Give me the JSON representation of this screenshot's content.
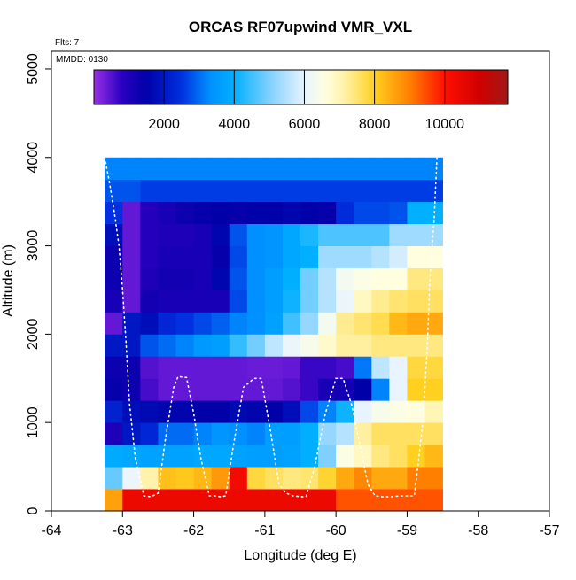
{
  "chart_data": {
    "type": "heatmap",
    "title": "ORCAS RF07upwind VMR_VXL",
    "xlabel": "Longitude (deg E)",
    "ylabel": "Altitude (m)",
    "xlim": [
      -64,
      -57
    ],
    "ylim": [
      0,
      5200
    ],
    "x_ticks": [
      -64,
      -63,
      -62,
      -61,
      -60,
      -59,
      -58,
      -57
    ],
    "y_ticks": [
      0,
      1000,
      2000,
      3000,
      4000,
      5000
    ],
    "annotations": {
      "flights": "Flts: 7",
      "mmdd": "MMDD: 0130"
    },
    "colorbar": {
      "min": 0,
      "max": 11800,
      "ticks": [
        2000,
        4000,
        6000,
        8000,
        10000
      ],
      "stops": [
        [
          0,
          "#9a30e8"
        ],
        [
          800,
          "#2a00c0"
        ],
        [
          1500,
          "#0000a8"
        ],
        [
          2500,
          "#0030e0"
        ],
        [
          3300,
          "#0090ff"
        ],
        [
          4000,
          "#00b0ff"
        ],
        [
          5000,
          "#80d0ff"
        ],
        [
          6000,
          "#e8f4ff"
        ],
        [
          6600,
          "#ffffe0"
        ],
        [
          7200,
          "#fff0a0"
        ],
        [
          8000,
          "#ffd020"
        ],
        [
          9000,
          "#ff8000"
        ],
        [
          10000,
          "#ff1000"
        ],
        [
          11000,
          "#d00000"
        ],
        [
          11800,
          "#a01818"
        ]
      ]
    },
    "grid": {
      "lon_edges": [
        -63.25,
        -63.0,
        -62.75,
        -62.5,
        -62.25,
        -62.0,
        -61.75,
        -61.5,
        -61.25,
        -61.0,
        -60.75,
        -60.5,
        -60.25,
        -60.0,
        -59.75,
        -59.5,
        -59.25,
        -59.0,
        -58.75,
        -58.5
      ],
      "alt_edges": [
        0,
        250,
        500,
        750,
        1000,
        1250,
        1500,
        1750,
        2000,
        2250,
        2500,
        2750,
        3000,
        3250,
        3500,
        3750,
        4000
      ],
      "values": [
        [
          8600,
          10400,
          10400,
          10400,
          10400,
          10400,
          10400,
          10400,
          10400,
          10400,
          10400,
          10400,
          10400,
          9400,
          9400,
          9400,
          9400,
          9400,
          9400
        ],
        [
          4800,
          6100,
          7100,
          8200,
          8100,
          8300,
          8700,
          10300,
          7800,
          7600,
          7400,
          7500,
          7900,
          8500,
          8900,
          8500,
          8500,
          9000,
          9000
        ],
        [
          3900,
          3800,
          3700,
          3700,
          3700,
          3800,
          3800,
          3700,
          3600,
          3600,
          3700,
          4000,
          5000,
          6500,
          6900,
          7400,
          7600,
          8000,
          8300
        ],
        [
          1000,
          2000,
          2300,
          3000,
          3000,
          3200,
          3400,
          3300,
          3200,
          3600,
          3600,
          4000,
          5200,
          5500,
          7200,
          7600,
          7600,
          7600,
          7600
        ],
        [
          2200,
          1800,
          1700,
          1600,
          1600,
          1500,
          1500,
          1700,
          1600,
          1500,
          1800,
          2700,
          3200,
          4100,
          6000,
          6400,
          6500,
          6600,
          7000
        ],
        [
          1400,
          1300,
          600,
          400,
          400,
          400,
          400,
          400,
          400,
          400,
          500,
          700,
          1100,
          1200,
          1500,
          3200,
          6000,
          8000,
          8000
        ],
        [
          1300,
          1300,
          500,
          400,
          400,
          400,
          400,
          400,
          350,
          350,
          400,
          700,
          700,
          600,
          3100,
          5600,
          6000,
          7800,
          7800
        ],
        [
          2000,
          2000,
          2800,
          3000,
          3200,
          3500,
          3600,
          4400,
          4900,
          5600,
          6100,
          6400,
          6800,
          7200,
          7200,
          7400,
          7400,
          7400,
          7400
        ],
        [
          400,
          2000,
          1800,
          2300,
          2500,
          2700,
          2900,
          3200,
          3300,
          3700,
          4500,
          5200,
          6300,
          7300,
          7500,
          7700,
          8300,
          8500,
          8500
        ],
        [
          1100,
          400,
          1200,
          1100,
          1100,
          1100,
          1100,
          2700,
          3300,
          3600,
          4100,
          4900,
          5500,
          6100,
          6900,
          7300,
          7500,
          7600,
          7600
        ],
        [
          1300,
          400,
          1000,
          1200,
          1200,
          1100,
          1600,
          2800,
          3300,
          3600,
          4000,
          4900,
          5500,
          6300,
          6500,
          6600,
          6600,
          7400,
          7400
        ],
        [
          1300,
          400,
          900,
          1100,
          1100,
          1100,
          1400,
          2700,
          3300,
          3400,
          3800,
          4000,
          5300,
          5300,
          5300,
          5500,
          5800,
          6600,
          6600
        ],
        [
          1800,
          400,
          900,
          1000,
          1000,
          1100,
          1600,
          2800,
          3300,
          3400,
          3800,
          4200,
          4600,
          4600,
          4600,
          4600,
          5300,
          5300,
          5300
        ],
        [
          2500,
          400,
          900,
          1100,
          1300,
          1400,
          1500,
          1400,
          1500,
          1500,
          1600,
          1500,
          1400,
          2400,
          2700,
          2700,
          2800,
          4000,
          4000
        ],
        [
          2800,
          2800,
          2600,
          2600,
          2600,
          2600,
          2600,
          2600,
          2600,
          2600,
          2600,
          2600,
          2600,
          2600,
          2600,
          2600,
          2600,
          2600,
          2600
        ],
        [
          3200,
          3200,
          3200,
          3200,
          3200,
          3200,
          3200,
          3200,
          3200,
          3200,
          3200,
          3200,
          3200,
          3200,
          3200,
          3200,
          3200,
          3200,
          3200
        ]
      ]
    },
    "flight_track": {
      "lon": [
        -63.25,
        -63.18,
        -63.12,
        -63.05,
        -63.0,
        -62.95,
        -62.9,
        -62.82,
        -62.7,
        -62.6,
        -62.5,
        -62.4,
        -62.28,
        -62.22,
        -62.1,
        -62.0,
        -61.9,
        -61.78,
        -61.7,
        -61.62,
        -61.55,
        -61.45,
        -61.3,
        -61.15,
        -61.05,
        -60.92,
        -60.8,
        -60.7,
        -60.6,
        -60.48,
        -60.42,
        -60.3,
        -60.15,
        -60.0,
        -59.9,
        -59.78,
        -59.65,
        -59.55,
        -59.45,
        -59.35,
        -59.28,
        -59.22,
        -59.1,
        -59.0,
        -58.9,
        -58.85,
        -58.78,
        -58.72,
        -58.68,
        -58.62,
        -58.58
      ],
      "alt": [
        4000,
        3700,
        3400,
        3000,
        2500,
        1900,
        1200,
        600,
        170,
        160,
        200,
        800,
        1400,
        1520,
        1510,
        1100,
        600,
        170,
        170,
        160,
        170,
        700,
        1400,
        1500,
        1500,
        900,
        300,
        200,
        170,
        160,
        160,
        500,
        1100,
        1500,
        1500,
        1200,
        700,
        300,
        170,
        160,
        160,
        160,
        170,
        170,
        170,
        500,
        1000,
        1800,
        2600,
        3300,
        4000
      ]
    }
  }
}
